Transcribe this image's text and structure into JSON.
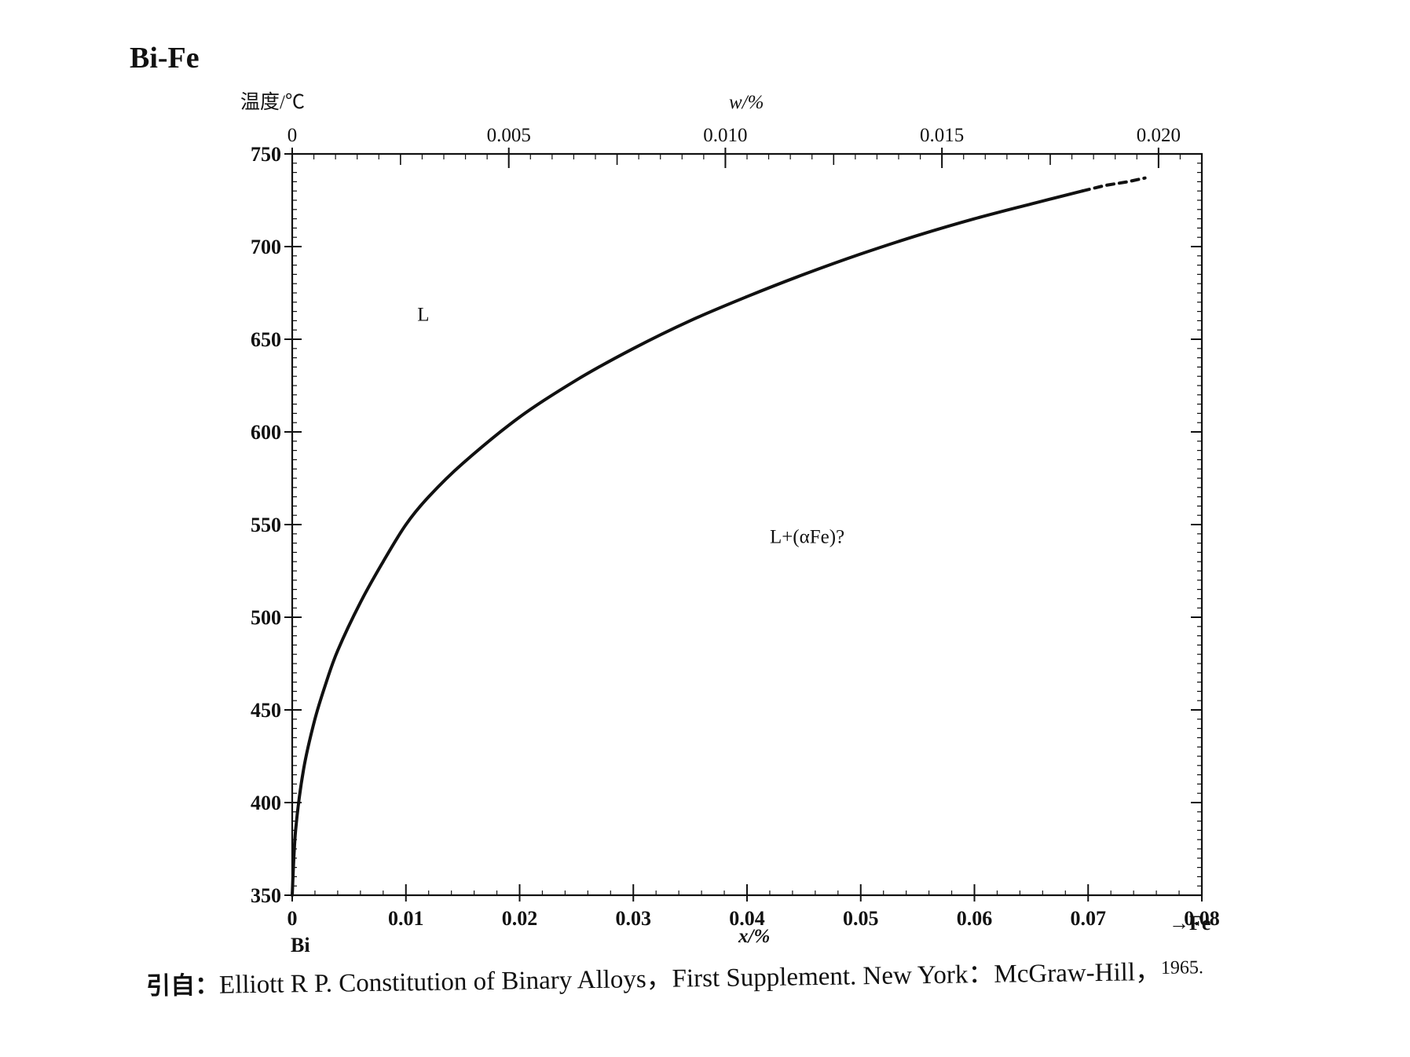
{
  "page": {
    "title": "Bi-Fe",
    "citation_prefix": "引自：",
    "citation_body": "Elliott R P.  Constitution of Binary Alloys，First Supplement.  New York：McGraw-Hill，",
    "citation_year": "1965."
  },
  "chart_data": {
    "type": "line",
    "title": "Bi-Fe",
    "ylabel": "温度/℃",
    "xlabel": "x/%",
    "x2label": "w/%",
    "ylim": [
      350,
      750
    ],
    "xlim": [
      0,
      0.08
    ],
    "x2lim": [
      0,
      0.021
    ],
    "yticks": [
      350,
      400,
      450,
      500,
      550,
      600,
      650,
      700,
      750
    ],
    "ytick_labels": [
      "350",
      "400",
      "450",
      "500",
      "550",
      "600",
      "650",
      "700",
      "750"
    ],
    "xticks": [
      0,
      0.01,
      0.02,
      0.03,
      0.04,
      0.05,
      0.06,
      0.07,
      0.08
    ],
    "xtick_labels": [
      "0",
      "0.01",
      "0.02",
      "0.03",
      "0.04",
      "0.05",
      "0.06",
      "0.07",
      "0.08"
    ],
    "x2ticks": [
      0,
      0.005,
      0.01,
      0.015,
      0.02
    ],
    "x2tick_labels": [
      "0",
      "0.005",
      "0.010",
      "0.015",
      "0.020"
    ],
    "left_element": "Bi",
    "right_element": "→Fe",
    "grid": false,
    "series": [
      {
        "style": "solid",
        "x": [
          0,
          0.0003,
          0.001,
          0.002,
          0.003,
          0.004,
          0.006,
          0.008,
          0.01,
          0.012,
          0.015,
          0.02,
          0.025,
          0.03,
          0.035,
          0.04,
          0.045,
          0.05,
          0.055,
          0.06,
          0.065,
          0.0695
        ],
        "y": [
          350,
          385,
          418,
          445,
          465,
          482,
          508,
          530,
          550,
          565,
          583,
          608,
          628,
          645,
          660,
          673,
          685,
          696,
          706,
          715,
          723,
          730
        ]
      },
      {
        "style": "dashed",
        "x": [
          0.0695,
          0.0715,
          0.0735,
          0.075
        ],
        "y": [
          730,
          733,
          735,
          737
        ]
      }
    ],
    "annotations": [
      {
        "text": "L",
        "x": 0.011,
        "y": 660
      },
      {
        "text": "L+(αFe)?",
        "x": 0.042,
        "y": 540
      }
    ]
  }
}
